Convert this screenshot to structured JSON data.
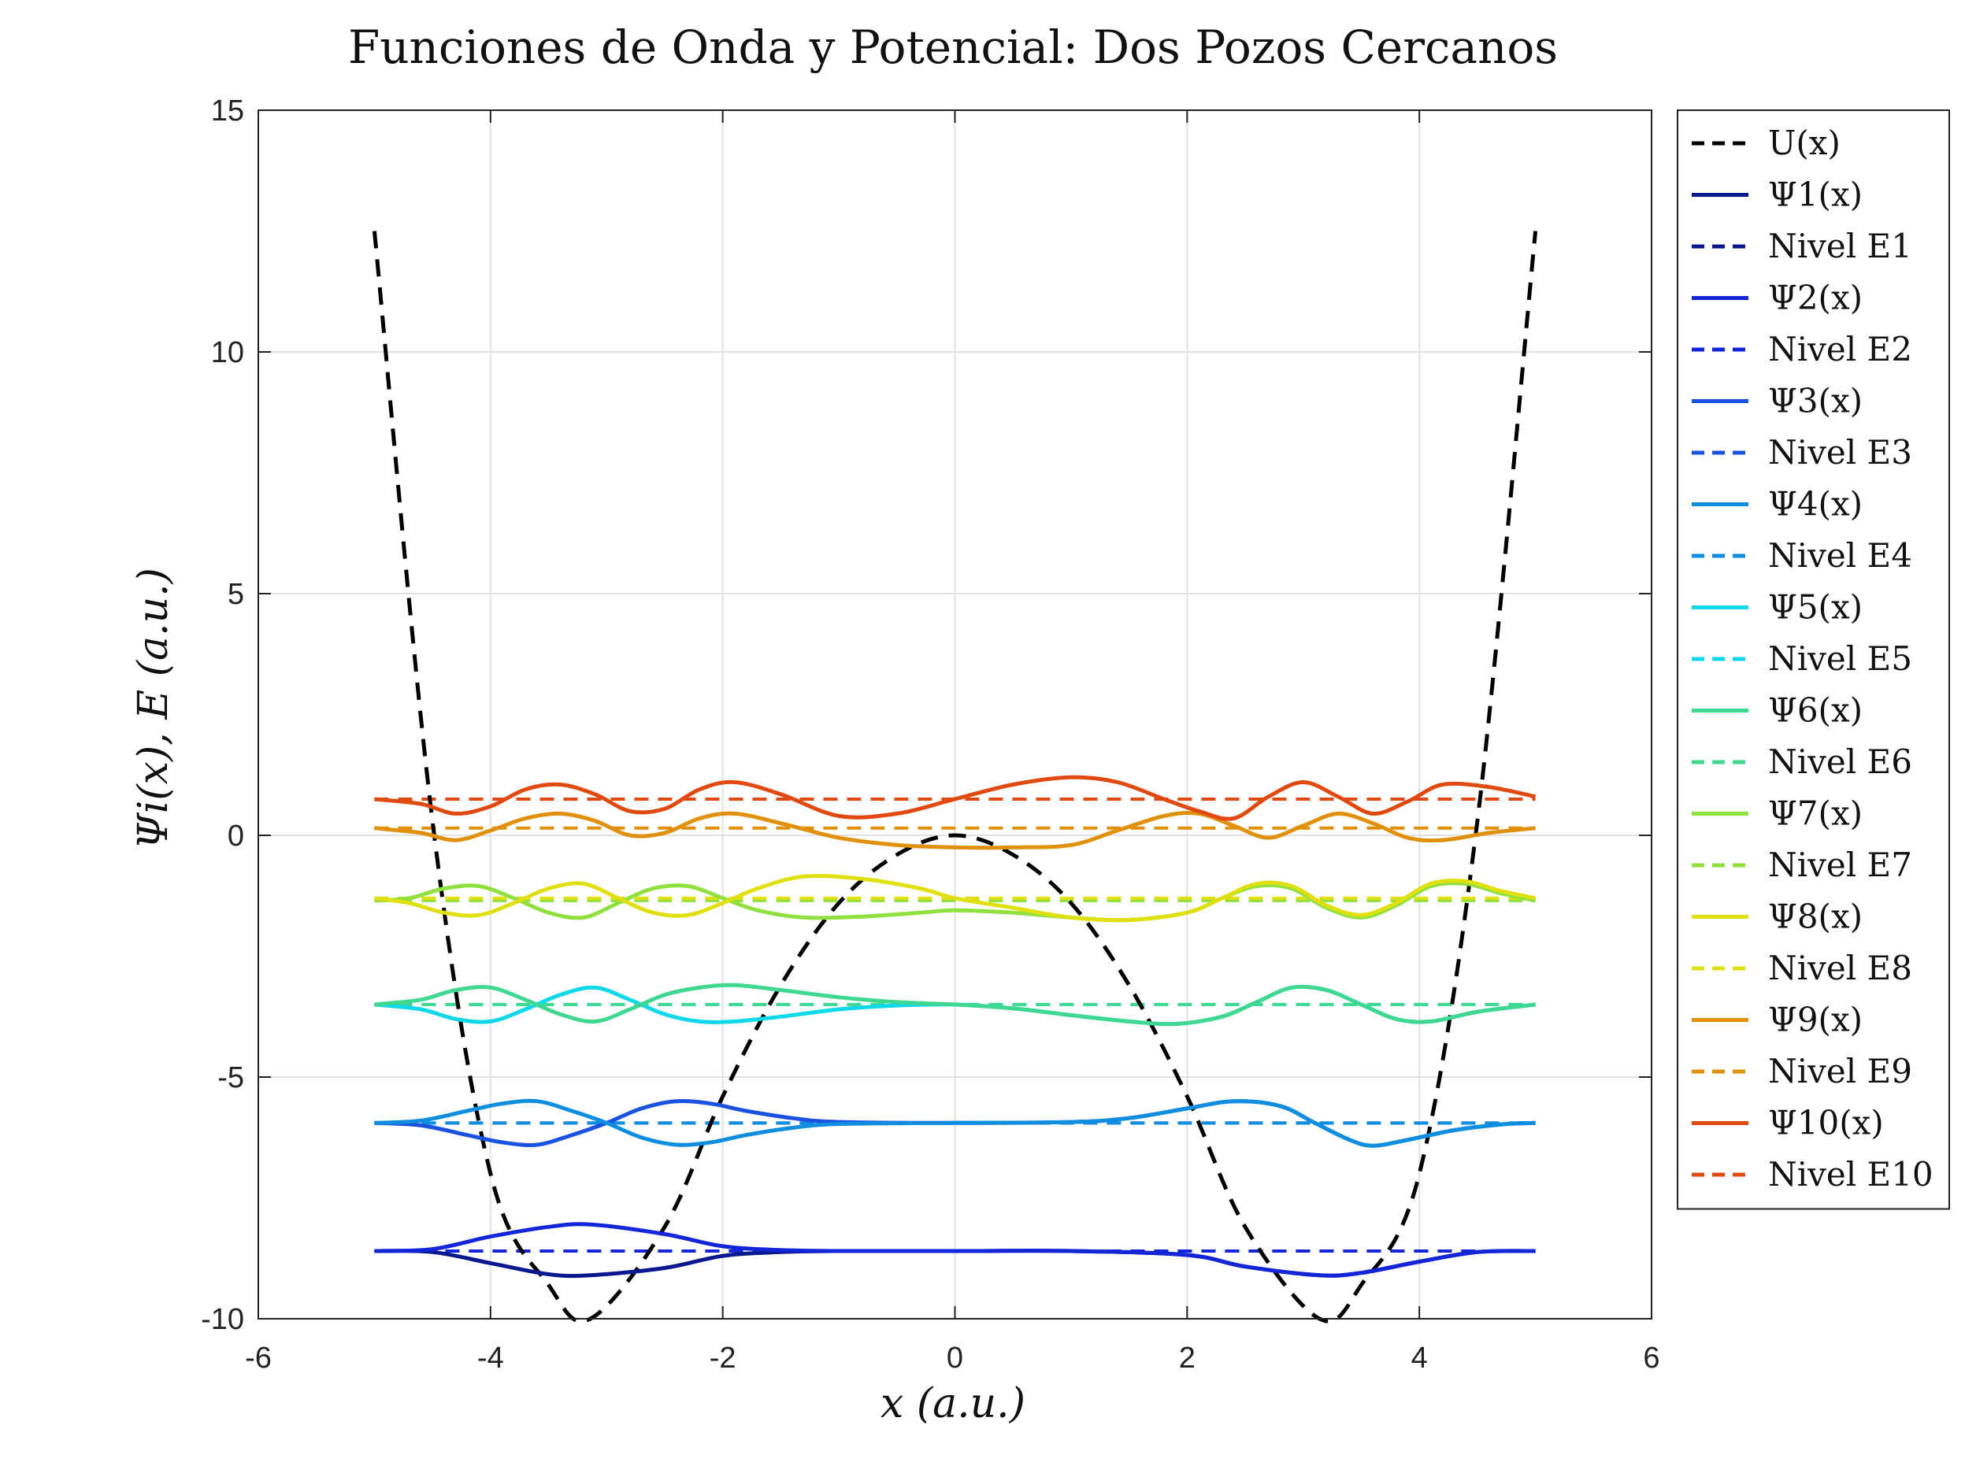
{
  "chart_data": {
    "type": "line",
    "title": "Funciones de Onda y Potencial: Dos Pozos Cercanos",
    "xlabel": "x (a.u.)",
    "ylabel": "Ψi(x), E (a.u.)",
    "xlim": [
      -6,
      6
    ],
    "ylim": [
      -10,
      15
    ],
    "xticks": [
      -6,
      -4,
      -2,
      0,
      2,
      4,
      6
    ],
    "yticks": [
      -10,
      -5,
      0,
      5,
      10,
      15
    ],
    "xtick_labels": [
      "-6",
      "-4",
      "-2",
      "0",
      "2",
      "4",
      "6"
    ],
    "ytick_labels": [
      "-10",
      "-5",
      "0",
      "5",
      "10",
      "15"
    ],
    "grid": true,
    "legend_position": "outside-right",
    "potential": {
      "name": "U(x)",
      "color": "#000000",
      "style": "dashed",
      "x": [
        -5,
        -4.5,
        -4,
        -3.5,
        -3.14,
        -2.5,
        -2,
        -1.5,
        -1,
        -0.5,
        0,
        0.5,
        1,
        1.5,
        2,
        2.5,
        3.14,
        3.5,
        4,
        4.5,
        5
      ],
      "y": [
        12.5,
        0.3,
        -7.0,
        -9.3,
        -10.0,
        -8.1,
        -5.4,
        -3.1,
        -1.4,
        -0.4,
        0.0,
        -0.4,
        -1.4,
        -3.1,
        -5.4,
        -8.1,
        -10.0,
        -9.3,
        -7.0,
        0.3,
        12.5
      ]
    },
    "series": [
      {
        "name": "Ψ1(x)",
        "level_name": "Nivel E1",
        "color": "#0a1890",
        "energy": -8.6,
        "x": [
          -5,
          -4.5,
          -4,
          -3.5,
          -3.14,
          -2.5,
          -2,
          -1.5,
          -1,
          0,
          1,
          2,
          2.5,
          3.14,
          3.5,
          4,
          4.5,
          5
        ],
        "y": [
          -8.6,
          -8.62,
          -8.85,
          -9.08,
          -9.1,
          -8.95,
          -8.7,
          -8.62,
          -8.6,
          -8.6,
          -8.6,
          -8.68,
          -8.92,
          -9.1,
          -9.05,
          -8.82,
          -8.62,
          -8.6
        ]
      },
      {
        "name": "Ψ2(x)",
        "level_name": "Nivel E2",
        "color": "#1226d8",
        "energy": -8.6,
        "x": [
          -5,
          -4.5,
          -4,
          -3.5,
          -3.14,
          -2.5,
          -2,
          -1.5,
          -1,
          0,
          1,
          2,
          2.5,
          3.14,
          3.5,
          4,
          4.5,
          5
        ],
        "y": [
          -8.6,
          -8.56,
          -8.3,
          -8.1,
          -8.05,
          -8.25,
          -8.5,
          -8.58,
          -8.6,
          -8.6,
          -8.6,
          -8.68,
          -8.92,
          -9.1,
          -9.05,
          -8.82,
          -8.62,
          -8.6
        ]
      },
      {
        "name": "Ψ3(x)",
        "level_name": "Nivel E3",
        "color": "#1a52e0",
        "energy": -5.95,
        "x": [
          -5,
          -4.6,
          -4.2,
          -3.9,
          -3.6,
          -3.3,
          -3.0,
          -2.7,
          -2.4,
          -2.1,
          -1.8,
          -1.4,
          -1,
          0,
          1,
          1.5,
          2,
          2.4,
          2.8,
          3.1,
          3.4,
          3.6,
          3.9,
          4.3,
          4.7,
          5
        ],
        "y": [
          -5.95,
          -6.0,
          -6.2,
          -6.35,
          -6.4,
          -6.2,
          -5.95,
          -5.65,
          -5.5,
          -5.55,
          -5.7,
          -5.85,
          -5.93,
          -5.95,
          -5.93,
          -5.85,
          -5.65,
          -5.5,
          -5.6,
          -5.95,
          -6.3,
          -6.42,
          -6.3,
          -6.1,
          -5.98,
          -5.95
        ]
      },
      {
        "name": "Ψ4(x)",
        "level_name": "Nivel E4",
        "color": "#0f8ee0",
        "energy": -5.95,
        "x": [
          -5,
          -4.6,
          -4.2,
          -3.9,
          -3.6,
          -3.3,
          -3.0,
          -2.7,
          -2.4,
          -2.1,
          -1.8,
          -1.4,
          -1,
          0,
          1,
          1.5,
          2,
          2.4,
          2.8,
          3.1,
          3.4,
          3.6,
          3.9,
          4.3,
          4.7,
          5
        ],
        "y": [
          -5.95,
          -5.9,
          -5.7,
          -5.55,
          -5.5,
          -5.7,
          -5.95,
          -6.25,
          -6.4,
          -6.35,
          -6.2,
          -6.05,
          -5.97,
          -5.95,
          -5.93,
          -5.85,
          -5.65,
          -5.5,
          -5.6,
          -5.95,
          -6.3,
          -6.42,
          -6.3,
          -6.1,
          -5.98,
          -5.95
        ]
      },
      {
        "name": "Ψ5(x)",
        "level_name": "Nivel E5",
        "color": "#10d8e8",
        "energy": -3.5,
        "x": [
          -5,
          -4.6,
          -4.3,
          -4.0,
          -3.7,
          -3.4,
          -3.1,
          -2.8,
          -2.5,
          -2.2,
          -1.9,
          -1.5,
          -1,
          -0.5,
          0,
          0.5,
          1,
          1.5,
          1.9,
          2.3,
          2.6,
          2.9,
          3.2,
          3.5,
          3.8,
          4.1,
          4.5,
          5
        ],
        "y": [
          -3.5,
          -3.6,
          -3.8,
          -3.85,
          -3.6,
          -3.3,
          -3.15,
          -3.4,
          -3.7,
          -3.85,
          -3.85,
          -3.75,
          -3.6,
          -3.52,
          -3.5,
          -3.58,
          -3.72,
          -3.85,
          -3.9,
          -3.75,
          -3.45,
          -3.15,
          -3.2,
          -3.5,
          -3.8,
          -3.85,
          -3.65,
          -3.5
        ]
      },
      {
        "name": "Ψ6(x)",
        "level_name": "Nivel E6",
        "color": "#40d890",
        "energy": -3.5,
        "x": [
          -5,
          -4.6,
          -4.3,
          -4.0,
          -3.7,
          -3.4,
          -3.1,
          -2.8,
          -2.5,
          -2.2,
          -1.9,
          -1.5,
          -1,
          -0.5,
          0,
          0.5,
          1,
          1.5,
          1.9,
          2.3,
          2.6,
          2.9,
          3.2,
          3.5,
          3.8,
          4.1,
          4.5,
          5
        ],
        "y": [
          -3.5,
          -3.4,
          -3.2,
          -3.15,
          -3.4,
          -3.7,
          -3.85,
          -3.6,
          -3.3,
          -3.15,
          -3.1,
          -3.2,
          -3.35,
          -3.45,
          -3.5,
          -3.58,
          -3.72,
          -3.85,
          -3.9,
          -3.75,
          -3.45,
          -3.15,
          -3.2,
          -3.5,
          -3.8,
          -3.85,
          -3.65,
          -3.5
        ]
      },
      {
        "name": "Ψ7(x)",
        "level_name": "Nivel E7",
        "color": "#90e040",
        "energy": -1.35,
        "x": [
          -5,
          -4.7,
          -4.4,
          -4.1,
          -3.8,
          -3.5,
          -3.2,
          -2.9,
          -2.6,
          -2.3,
          -2.0,
          -1.7,
          -1.3,
          -0.8,
          -0.3,
          0,
          0.5,
          1,
          1.5,
          2.0,
          2.3,
          2.6,
          2.9,
          3.2,
          3.5,
          3.8,
          4.1,
          4.4,
          4.7,
          5
        ],
        "y": [
          -1.35,
          -1.3,
          -1.1,
          -1.05,
          -1.3,
          -1.6,
          -1.7,
          -1.4,
          -1.1,
          -1.05,
          -1.3,
          -1.55,
          -1.7,
          -1.68,
          -1.6,
          -1.55,
          -1.6,
          -1.7,
          -1.75,
          -1.6,
          -1.3,
          -1.05,
          -1.1,
          -1.5,
          -1.7,
          -1.45,
          -1.05,
          -1.0,
          -1.2,
          -1.35
        ]
      },
      {
        "name": "Ψ8(x)",
        "level_name": "Nivel E8",
        "color": "#e0e010",
        "energy": -1.3,
        "x": [
          -5,
          -4.7,
          -4.4,
          -4.1,
          -3.8,
          -3.5,
          -3.2,
          -2.9,
          -2.6,
          -2.3,
          -2.0,
          -1.7,
          -1.3,
          -0.8,
          -0.3,
          0,
          0.5,
          1,
          1.5,
          2.0,
          2.3,
          2.6,
          2.9,
          3.2,
          3.5,
          3.8,
          4.1,
          4.4,
          4.7,
          5
        ],
        "y": [
          -1.3,
          -1.4,
          -1.6,
          -1.65,
          -1.4,
          -1.1,
          -1.0,
          -1.3,
          -1.6,
          -1.65,
          -1.4,
          -1.1,
          -0.85,
          -0.9,
          -1.1,
          -1.3,
          -1.5,
          -1.7,
          -1.75,
          -1.6,
          -1.3,
          -1.0,
          -1.05,
          -1.45,
          -1.65,
          -1.4,
          -1.0,
          -0.95,
          -1.15,
          -1.3
        ]
      },
      {
        "name": "Ψ9(x)",
        "level_name": "Nivel E9",
        "color": "#e0900a",
        "energy": 0.15,
        "x": [
          -5,
          -4.6,
          -4.3,
          -4.0,
          -3.7,
          -3.4,
          -3.1,
          -2.8,
          -2.5,
          -2.2,
          -1.9,
          -1.5,
          -1.0,
          -0.5,
          0,
          0.5,
          1.0,
          1.4,
          1.8,
          2.1,
          2.4,
          2.7,
          3.0,
          3.3,
          3.6,
          3.9,
          4.2,
          4.6,
          5
        ],
        "y": [
          0.15,
          0.05,
          -0.1,
          0.1,
          0.35,
          0.45,
          0.3,
          0.0,
          0.05,
          0.35,
          0.45,
          0.25,
          -0.05,
          -0.2,
          -0.25,
          -0.25,
          -0.2,
          0.1,
          0.4,
          0.45,
          0.2,
          -0.05,
          0.2,
          0.45,
          0.25,
          -0.05,
          -0.1,
          0.05,
          0.15
        ]
      },
      {
        "name": "Ψ10(x)",
        "level_name": "Nivel E10",
        "color": "#e04a10",
        "energy": 0.75,
        "x": [
          -5,
          -4.6,
          -4.3,
          -4.0,
          -3.7,
          -3.4,
          -3.1,
          -2.8,
          -2.5,
          -2.2,
          -1.9,
          -1.5,
          -1.0,
          -0.5,
          0,
          0.5,
          1.0,
          1.4,
          1.8,
          2.1,
          2.4,
          2.7,
          3.0,
          3.3,
          3.6,
          3.9,
          4.2,
          4.6,
          5
        ],
        "y": [
          0.75,
          0.65,
          0.45,
          0.6,
          0.95,
          1.05,
          0.85,
          0.5,
          0.55,
          0.95,
          1.1,
          0.85,
          0.4,
          0.45,
          0.75,
          1.05,
          1.2,
          1.1,
          0.75,
          0.5,
          0.35,
          0.8,
          1.1,
          0.8,
          0.45,
          0.7,
          1.05,
          1.0,
          0.8
        ]
      }
    ]
  }
}
